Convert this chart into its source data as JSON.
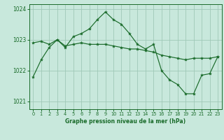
{
  "title": "Graphe pression niveau de la mer (hPa)",
  "background_color": "#c8e8dc",
  "grid_color": "#a0c8b8",
  "line_color": "#1a6b2a",
  "marker_color": "#1a6b2a",
  "xlim": [
    -0.5,
    23.5
  ],
  "ylim": [
    1020.75,
    1024.15
  ],
  "yticks": [
    1021,
    1022,
    1023,
    1024
  ],
  "xticks": [
    0,
    1,
    2,
    3,
    4,
    5,
    6,
    7,
    8,
    9,
    10,
    11,
    12,
    13,
    14,
    15,
    16,
    17,
    18,
    19,
    20,
    21,
    22,
    23
  ],
  "series1_x": [
    0,
    1,
    2,
    3,
    4,
    5,
    6,
    7,
    8,
    9,
    10,
    11,
    12,
    13,
    14,
    15,
    16,
    17,
    18,
    19,
    20,
    21,
    22,
    23
  ],
  "series1_y": [
    1022.9,
    1022.95,
    1022.85,
    1023.0,
    1022.8,
    1022.85,
    1022.9,
    1022.85,
    1022.85,
    1022.85,
    1022.8,
    1022.75,
    1022.7,
    1022.7,
    1022.65,
    1022.6,
    1022.5,
    1022.45,
    1022.4,
    1022.35,
    1022.4,
    1022.4,
    1022.4,
    1022.45
  ],
  "series2_x": [
    0,
    1,
    2,
    3,
    4,
    5,
    6,
    7,
    8,
    9,
    10,
    11,
    12,
    13,
    14,
    15,
    16,
    17,
    18,
    19,
    20,
    21,
    22,
    23
  ],
  "series2_y": [
    1021.8,
    1022.35,
    1022.75,
    1023.0,
    1022.75,
    1023.1,
    1023.2,
    1023.35,
    1023.65,
    1023.9,
    1023.65,
    1023.5,
    1023.2,
    1022.85,
    1022.7,
    1022.85,
    1022.0,
    1021.7,
    1021.55,
    1021.25,
    1021.25,
    1021.85,
    1021.9,
    1022.45
  ]
}
